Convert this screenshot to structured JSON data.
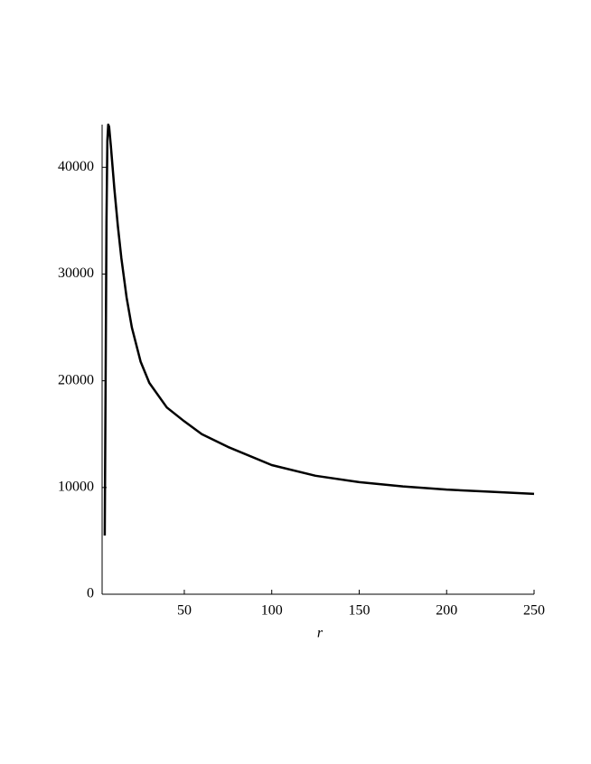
{
  "chart_data": {
    "type": "line",
    "x_label": "r",
    "x": [
      4.5,
      5,
      5.5,
      6,
      6.5,
      7,
      8,
      9,
      10,
      12,
      14,
      17,
      20,
      25,
      30,
      40,
      50,
      60,
      75,
      100,
      125,
      150,
      175,
      200,
      225,
      250
    ],
    "series": [
      {
        "color": "#000000",
        "values": [
          5500,
          20000,
          35000,
          42500,
          44000,
          43800,
          42000,
          40000,
          38000,
          34500,
          31500,
          27800,
          25000,
          21800,
          19800,
          17500,
          16200,
          15000,
          13800,
          12100,
          11100,
          10500,
          10100,
          9800,
          9600,
          9400
        ]
      }
    ],
    "xlim": [
      3,
      250
    ],
    "xticks": [
      50,
      100,
      150,
      200,
      250
    ],
    "ylim": [
      0,
      44000
    ],
    "yticks": [
      0,
      10000,
      20000,
      30000,
      40000
    ]
  }
}
